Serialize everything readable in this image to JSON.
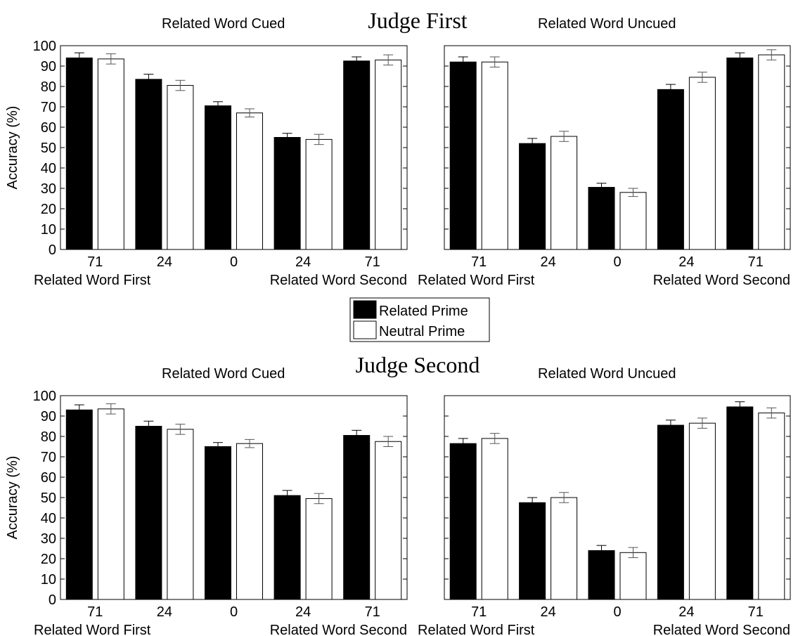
{
  "figure": {
    "group_titles": [
      "Judge First",
      "Judge Second"
    ],
    "legend": [
      {
        "label": "Related Prime",
        "fill": "#000000"
      },
      {
        "label": "Neutral Prime",
        "fill": "#ffffff"
      }
    ]
  },
  "chart_data": [
    {
      "type": "bar",
      "group": "Judge First",
      "title": "Related Word Cued",
      "ylabel": "Accuracy (%)",
      "ylim": [
        0,
        100
      ],
      "yticks": [
        0,
        10,
        20,
        30,
        40,
        50,
        60,
        70,
        80,
        90,
        100
      ],
      "categories": [
        "71",
        "24",
        "0",
        "24",
        "71"
      ],
      "xlabel_left": "Related Word First",
      "xlabel_right": "Related Word Second",
      "series": [
        {
          "name": "Related Prime",
          "values": [
            94,
            83.5,
            70.5,
            55,
            92.5
          ],
          "errors": [
            2.5,
            2.5,
            2,
            2,
            2
          ]
        },
        {
          "name": "Neutral Prime",
          "values": [
            93.5,
            80.5,
            67,
            54,
            93
          ],
          "errors": [
            2.5,
            2.5,
            2,
            2.5,
            2.5
          ]
        }
      ]
    },
    {
      "type": "bar",
      "group": "Judge First",
      "title": "Related Word Uncued",
      "ylabel": "",
      "ylim": [
        0,
        100
      ],
      "yticks": [
        0,
        10,
        20,
        30,
        40,
        50,
        60,
        70,
        80,
        90,
        100
      ],
      "categories": [
        "71",
        "24",
        "0",
        "24",
        "71"
      ],
      "xlabel_left": "Related Word First",
      "xlabel_right": "Related Word Second",
      "series": [
        {
          "name": "Related Prime",
          "values": [
            92,
            52,
            30.5,
            78.5,
            94
          ],
          "errors": [
            2.5,
            2.5,
            2,
            2.5,
            2.5
          ]
        },
        {
          "name": "Neutral Prime",
          "values": [
            92,
            55.5,
            28,
            84.5,
            95.5
          ],
          "errors": [
            2.5,
            2.5,
            2,
            2.5,
            2.5
          ]
        }
      ]
    },
    {
      "type": "bar",
      "group": "Judge Second",
      "title": "Related Word Cued",
      "ylabel": "Accuracy (%)",
      "ylim": [
        0,
        100
      ],
      "yticks": [
        0,
        10,
        20,
        30,
        40,
        50,
        60,
        70,
        80,
        90,
        100
      ],
      "categories": [
        "71",
        "24",
        "0",
        "24",
        "71"
      ],
      "xlabel_left": "Related Word First",
      "xlabel_right": "Related Word Second",
      "series": [
        {
          "name": "Related Prime",
          "values": [
            93,
            85,
            75,
            51,
            80.5
          ],
          "errors": [
            2.5,
            2.5,
            2,
            2.5,
            2.5
          ]
        },
        {
          "name": "Neutral Prime",
          "values": [
            93.5,
            83.5,
            76.5,
            49.5,
            77.5
          ],
          "errors": [
            2.5,
            2.5,
            2,
            2.5,
            2.5
          ]
        }
      ]
    },
    {
      "type": "bar",
      "group": "Judge Second",
      "title": "Related Word Uncued",
      "ylabel": "",
      "ylim": [
        0,
        100
      ],
      "yticks": [
        0,
        10,
        20,
        30,
        40,
        50,
        60,
        70,
        80,
        90,
        100
      ],
      "categories": [
        "71",
        "24",
        "0",
        "24",
        "71"
      ],
      "xlabel_left": "Related Word First",
      "xlabel_right": "Related Word Second",
      "series": [
        {
          "name": "Related Prime",
          "values": [
            76.5,
            47.5,
            24,
            85.5,
            94.5
          ],
          "errors": [
            2.5,
            2.5,
            2.5,
            2.5,
            2.5
          ]
        },
        {
          "name": "Neutral Prime",
          "values": [
            79,
            50,
            23,
            86.5,
            91.5
          ],
          "errors": [
            2.5,
            2.5,
            2.5,
            2.5,
            2.5
          ]
        }
      ]
    }
  ]
}
